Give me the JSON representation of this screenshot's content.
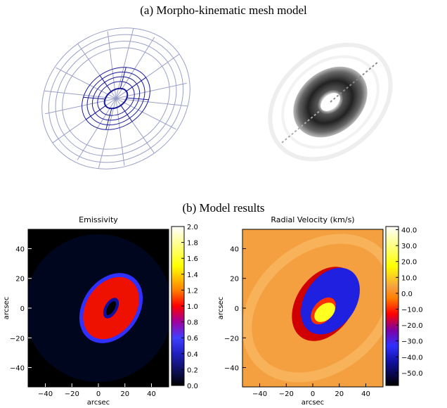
{
  "figure": {
    "caption_a": "(a) Morpho-kinematic mesh model",
    "caption_b": "(b) Model results"
  },
  "panels": [
    {
      "title": "Emissivity",
      "xlabel": "arcsec",
      "ylabel": "arcsec",
      "xlim": [
        -53,
        53
      ],
      "ylim": [
        -53,
        53
      ],
      "xticks": [
        {
          "value": -40,
          "label": "−40"
        },
        {
          "value": -20,
          "label": "−20"
        },
        0,
        20,
        40
      ],
      "yticks": [
        {
          "value": -40,
          "label": "−40"
        },
        {
          "value": -20,
          "label": "−20"
        },
        0,
        20,
        40
      ],
      "clim": [
        0,
        2
      ],
      "cticks": [
        {
          "value": 0,
          "label": "0.0"
        },
        0.2,
        0.4,
        0.6,
        0.8,
        {
          "value": 1,
          "label": "1.0"
        },
        1.2,
        1.4,
        1.6,
        1.8,
        {
          "value": 2,
          "label": "2.0"
        }
      ]
    },
    {
      "title": "Radial Velocity (km/s)",
      "xlabel": "arcsec",
      "ylabel": "arcsec",
      "xlim": [
        -53,
        53
      ],
      "ylim": [
        -53,
        53
      ],
      "xticks": [
        {
          "value": -40,
          "label": "−40"
        },
        {
          "value": -20,
          "label": "−20"
        },
        0,
        20,
        40
      ],
      "yticks": [
        {
          "value": -40,
          "label": "−40"
        },
        {
          "value": -20,
          "label": "−20"
        },
        0,
        20,
        40
      ],
      "clim": [
        -58,
        42
      ],
      "cticks": [
        {
          "value": 40,
          "label": "40.0"
        },
        {
          "value": 30,
          "label": "30.0"
        },
        {
          "value": 20,
          "label": "20.0"
        },
        {
          "value": 10,
          "label": "10.0"
        },
        {
          "value": 0,
          "label": "0.0"
        },
        {
          "value": -10,
          "label": "−10.0"
        },
        {
          "value": -20,
          "label": "−20.0"
        },
        {
          "value": -30,
          "label": "−30.0"
        },
        {
          "value": -40,
          "label": "−40.0"
        },
        {
          "value": -50,
          "label": "−50.0"
        }
      ]
    }
  ]
}
